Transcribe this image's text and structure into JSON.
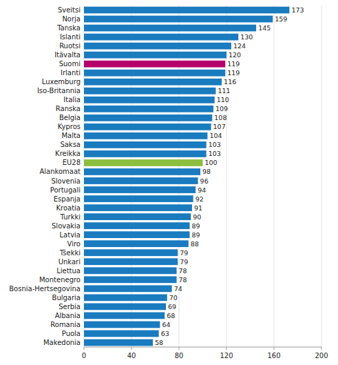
{
  "chart_data": {
    "type": "bar",
    "orientation": "horizontal",
    "categories": [
      "Makedonia",
      "Puola",
      "Romania",
      "Albania",
      "Serbia",
      "Bulgaria",
      "Bosnia-Hertsegovina",
      "Montenegro",
      "Liettua",
      "Unkari",
      "Tšekki",
      "Viro",
      "Latvia",
      "Slovakia",
      "Turkki",
      "Kroatia",
      "Espanja",
      "Portugali",
      "Slovenia",
      "Alankomaat",
      "EU28",
      "Kreikka",
      "Saksa",
      "Malta",
      "Kypros",
      "Belgia",
      "Ranska",
      "Italia",
      "Iso-Britannia",
      "Luxemburg",
      "Irlanti",
      "Suomi",
      "Itävalta",
      "Ruotsi",
      "Islanti",
      "Tanska",
      "Norja",
      "Sveitsi"
    ],
    "values": [
      58,
      63,
      64,
      68,
      69,
      70,
      74,
      78,
      78,
      79,
      79,
      88,
      89,
      89,
      90,
      91,
      92,
      94,
      96,
      98,
      100,
      103,
      103,
      104,
      107,
      108,
      109,
      110,
      111,
      116,
      119,
      119,
      120,
      124,
      130,
      145,
      159,
      173
    ],
    "colors": [
      "#1A7BBF",
      "#1A7BBF",
      "#1A7BBF",
      "#1A7BBF",
      "#1A7BBF",
      "#1A7BBF",
      "#1A7BBF",
      "#1A7BBF",
      "#1A7BBF",
      "#1A7BBF",
      "#1A7BBF",
      "#1A7BBF",
      "#1A7BBF",
      "#1A7BBF",
      "#1A7BBF",
      "#1A7BBF",
      "#1A7BBF",
      "#1A7BBF",
      "#1A7BBF",
      "#1A7BBF",
      "#8CBF3F",
      "#1A7BBF",
      "#1A7BBF",
      "#1A7BBF",
      "#1A7BBF",
      "#1A7BBF",
      "#1A7BBF",
      "#1A7BBF",
      "#1A7BBF",
      "#1A7BBF",
      "#1A7BBF",
      "#B5006B",
      "#1A7BBF",
      "#1A7BBF",
      "#1A7BBF",
      "#1A7BBF",
      "#1A7BBF",
      "#1A7BBF"
    ],
    "xlim": [
      0,
      200
    ],
    "xticks": [
      0,
      40,
      80,
      120,
      160,
      200
    ],
    "grid": true,
    "data_labels": true
  }
}
